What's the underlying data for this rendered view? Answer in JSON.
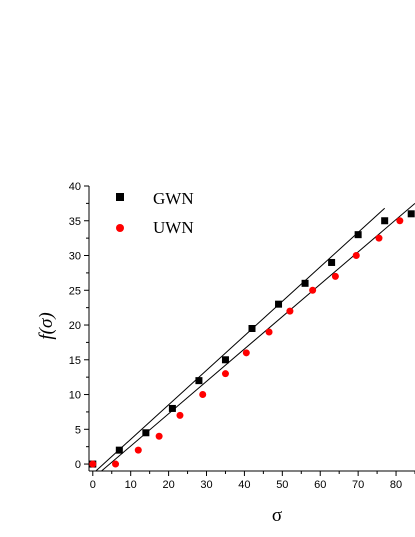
{
  "chart_data": {
    "type": "scatter",
    "title": "",
    "xlabel": "σ",
    "ylabel": "f(σ)",
    "xlim": [
      -1,
      85
    ],
    "ylim": [
      -1,
      40
    ],
    "xticks": [
      0,
      10,
      20,
      30,
      40,
      50,
      60,
      70,
      80
    ],
    "yticks": [
      0,
      5,
      10,
      15,
      20,
      25,
      30,
      35,
      40
    ],
    "legend_position": "top-left",
    "series": [
      {
        "name": "GWN",
        "marker": "square",
        "color": "#000000",
        "points": [
          {
            "x": 0,
            "y": 0
          },
          {
            "x": 7,
            "y": 2
          },
          {
            "x": 14,
            "y": 4.5
          },
          {
            "x": 21,
            "y": 8
          },
          {
            "x": 28,
            "y": 12
          },
          {
            "x": 35,
            "y": 15
          },
          {
            "x": 42,
            "y": 19.5
          },
          {
            "x": 49,
            "y": 23
          },
          {
            "x": 56,
            "y": 26
          },
          {
            "x": 63,
            "y": 29
          },
          {
            "x": 70,
            "y": 33
          },
          {
            "x": 77,
            "y": 35
          },
          {
            "x": 84,
            "y": 36
          }
        ],
        "fit": {
          "x": [
            0.8,
            77
          ],
          "y": [
            -1,
            36.8
          ]
        }
      },
      {
        "name": "UWN",
        "marker": "circle",
        "color": "#ff0000",
        "points": [
          {
            "x": 0,
            "y": 0
          },
          {
            "x": 6,
            "y": 0
          },
          {
            "x": 12,
            "y": 2
          },
          {
            "x": 17.5,
            "y": 4
          },
          {
            "x": 23,
            "y": 7
          },
          {
            "x": 29,
            "y": 10
          },
          {
            "x": 35,
            "y": 13
          },
          {
            "x": 40.5,
            "y": 16
          },
          {
            "x": 46.5,
            "y": 19
          },
          {
            "x": 52,
            "y": 22
          },
          {
            "x": 58,
            "y": 25
          },
          {
            "x": 64,
            "y": 27
          },
          {
            "x": 69.5,
            "y": 30
          },
          {
            "x": 75.5,
            "y": 32.5
          },
          {
            "x": 81,
            "y": 35
          }
        ],
        "fit": {
          "x": [
            2.3,
            85
          ],
          "y": [
            -1,
            37.5
          ]
        }
      }
    ]
  }
}
